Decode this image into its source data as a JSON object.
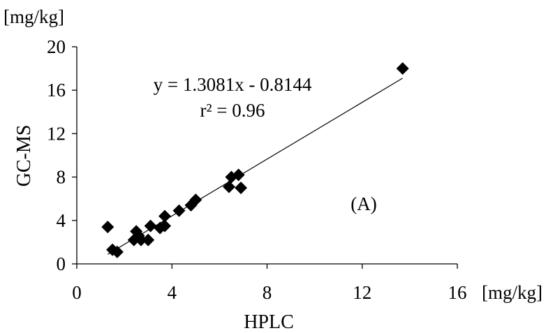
{
  "chart_data": {
    "type": "scatter",
    "title": "",
    "xlabel": "HPLC",
    "ylabel": "GC-MS",
    "x_unit": "[mg/kg]",
    "y_unit": "[mg/kg]",
    "xlim": [
      0,
      16
    ],
    "ylim": [
      0,
      20
    ],
    "x_ticks": [
      "0",
      "4",
      "8",
      "12",
      "16"
    ],
    "y_ticks": [
      "0",
      "4",
      "8",
      "12",
      "16",
      "20"
    ],
    "x_tick_values": [
      0,
      4,
      8,
      12,
      16
    ],
    "y_tick_values": [
      0,
      4,
      8,
      12,
      16,
      20
    ],
    "grid": false,
    "legend": "none",
    "marker": "diamond",
    "marker_color": "#000000",
    "series": [
      {
        "points": [
          [
            1.3,
            3.4
          ],
          [
            1.5,
            1.3
          ],
          [
            1.7,
            1.1
          ],
          [
            2.4,
            2.2
          ],
          [
            2.5,
            3.0
          ],
          [
            2.6,
            2.6
          ],
          [
            2.7,
            2.2
          ],
          [
            3.0,
            2.2
          ],
          [
            3.1,
            3.5
          ],
          [
            3.5,
            3.3
          ],
          [
            3.7,
            3.5
          ],
          [
            3.7,
            4.4
          ],
          [
            4.3,
            4.9
          ],
          [
            4.8,
            5.4
          ],
          [
            5.0,
            5.9
          ],
          [
            6.4,
            7.1
          ],
          [
            6.5,
            8.0
          ],
          [
            6.8,
            8.2
          ],
          [
            6.9,
            7.0
          ],
          [
            13.7,
            18.0
          ]
        ]
      }
    ],
    "trendline": {
      "slope": 1.3081,
      "intercept": -0.8144,
      "x_range": [
        1.3,
        13.7
      ]
    },
    "annotations": {
      "equation": "y = 1.3081x - 0.8144",
      "r2": "r² = 0.96",
      "panel": "(A)"
    }
  }
}
